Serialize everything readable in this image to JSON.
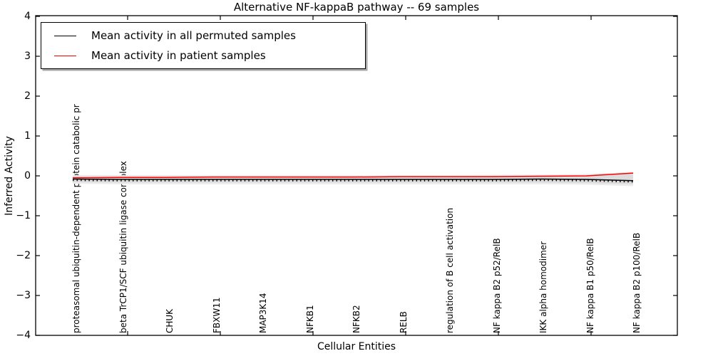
{
  "window": {
    "background": "#ffffff"
  },
  "axes": {
    "ytick_labels": [
      "4",
      "3",
      "2",
      "1",
      "0",
      "−1",
      "−2",
      "−3",
      "−4"
    ]
  },
  "chart_data": {
    "type": "line",
    "title": "Alternative NF-kappaB pathway -- 69 samples",
    "xlabel": "Cellular Entities",
    "ylabel": "Inferred Activity",
    "ylim": [
      -4,
      4
    ],
    "ytick_values": [
      4,
      3,
      2,
      1,
      0,
      -1,
      -2,
      -3,
      -4
    ],
    "grid": false,
    "legend_position": "upper left",
    "categories": [
      "proteasomal ubiquitin-dependent protein catabolic pr",
      "beta TrCP1/SCF ubiquitin ligase complex",
      "CHUK",
      "FBXW11",
      "MAP3K14",
      "NFKB1",
      "NFKB2",
      "RELB",
      "regulation of B cell activation",
      "NF kappa B2 p52/RelB",
      "IKK alpha homodimer",
      "NF kappa B1 p50/RelB",
      "NF kappa B2 p100/RelB"
    ],
    "series": [
      {
        "name": "Mean activity in all permuted samples",
        "color": "#000000",
        "values": [
          -0.08,
          -0.09,
          -0.09,
          -0.09,
          -0.09,
          -0.09,
          -0.09,
          -0.09,
          -0.09,
          -0.09,
          -0.08,
          -0.09,
          -0.12
        ]
      },
      {
        "name": "Mean activity in patient samples",
        "color": "#ff0000",
        "values": [
          -0.05,
          -0.04,
          -0.04,
          -0.03,
          -0.03,
          -0.03,
          -0.03,
          -0.02,
          -0.02,
          -0.02,
          -0.01,
          0.0,
          0.07
        ]
      }
    ],
    "bands": {
      "outer": {
        "color": "#ececec",
        "upper": [
          0.02,
          0.02,
          0.02,
          0.02,
          0.02,
          0.02,
          0.02,
          0.02,
          0.02,
          0.03,
          0.03,
          0.05,
          0.1
        ],
        "lower": [
          -0.2,
          -0.21,
          -0.21,
          -0.21,
          -0.21,
          -0.21,
          -0.21,
          -0.21,
          -0.21,
          -0.21,
          -0.21,
          -0.22,
          -0.26
        ]
      },
      "inner": {
        "color": "#dcdcdc",
        "upper": [
          -0.01,
          -0.01,
          -0.01,
          -0.01,
          -0.01,
          -0.01,
          -0.01,
          -0.01,
          -0.01,
          0.0,
          0.0,
          0.01,
          0.05
        ],
        "lower": [
          -0.16,
          -0.17,
          -0.17,
          -0.17,
          -0.17,
          -0.17,
          -0.17,
          -0.17,
          -0.17,
          -0.17,
          -0.17,
          -0.18,
          -0.21
        ]
      }
    }
  }
}
